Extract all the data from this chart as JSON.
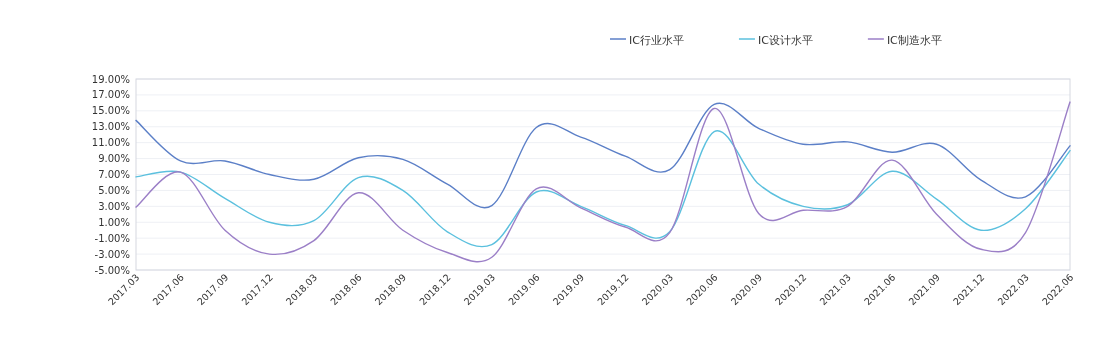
{
  "chart_data": {
    "type": "line",
    "categories": [
      "2017.03",
      "2017.06",
      "2017.09",
      "2017.12",
      "2018.03",
      "2018.06",
      "2018.09",
      "2018.12",
      "2019.03",
      "2019.06",
      "2019.09",
      "2019.12",
      "2020.03",
      "2020.06",
      "2020.09",
      "2020.12",
      "2021.03",
      "2021.06",
      "2021.09",
      "2021.12",
      "2022.03",
      "2022.06"
    ],
    "series": [
      {
        "name": "IC行业水平",
        "color": "#5b7fc7",
        "values": [
          13.8,
          8.7,
          8.7,
          7.0,
          6.4,
          9.1,
          8.9,
          5.8,
          3.1,
          12.9,
          11.7,
          9.3,
          7.6,
          15.8,
          12.8,
          10.8,
          11.1,
          9.8,
          10.8,
          6.3,
          4.2,
          10.6
        ]
      },
      {
        "name": "IC设计水平",
        "color": "#5bc0de",
        "values": [
          6.7,
          7.3,
          4.0,
          1.0,
          1.2,
          6.6,
          5.0,
          -0.2,
          -1.8,
          4.8,
          3.0,
          0.6,
          -0.2,
          12.4,
          5.8,
          3.0,
          3.2,
          7.4,
          3.9,
          0.0,
          2.7,
          10.0
        ]
      },
      {
        "name": "IC制造水平",
        "color": "#9b7fc7",
        "values": [
          2.9,
          7.3,
          0.0,
          -3.0,
          -1.3,
          4.7,
          0.0,
          -2.8,
          -3.4,
          5.2,
          2.8,
          0.4,
          -0.3,
          15.3,
          2.1,
          2.5,
          3.0,
          8.8,
          2.0,
          -2.4,
          -0.3,
          16.1
        ]
      }
    ],
    "ylim": [
      -5,
      19
    ],
    "yticks": [
      {
        "value": -5,
        "label": "-5.00%"
      },
      {
        "value": -3,
        "label": "-3.00%"
      },
      {
        "value": -1,
        "label": "-1.00%"
      },
      {
        "value": 1,
        "label": "1.00%"
      },
      {
        "value": 3,
        "label": "3.00%"
      },
      {
        "value": 5,
        "label": "5.00%"
      },
      {
        "value": 7,
        "label": "7.00%"
      },
      {
        "value": 9,
        "label": "9.00%"
      },
      {
        "value": 11,
        "label": "11.00%"
      },
      {
        "value": 13,
        "label": "13.00%"
      },
      {
        "value": 15,
        "label": "15.00%"
      },
      {
        "value": 17,
        "label": "17.00%"
      },
      {
        "value": 19,
        "label": "19.00%"
      }
    ],
    "grid": "y",
    "legend": "top",
    "marker": "none",
    "line_style": "solid"
  }
}
